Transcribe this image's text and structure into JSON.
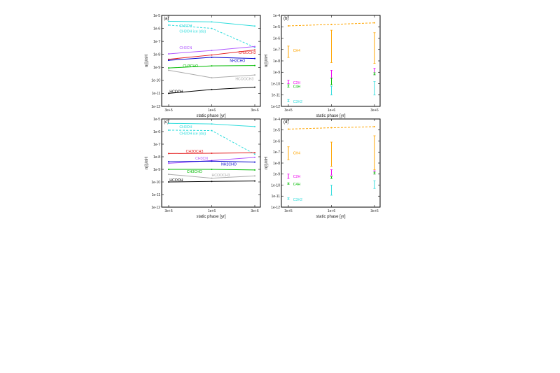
{
  "figure": {
    "yaxis_label": "n(i)/n",
    "yaxis_sub": "H",
    "xaxis_label": "static phase [yr]"
  },
  "chart_data": [
    {
      "panel": "(a)",
      "type": "line",
      "log_y": true,
      "ylim_exp": [
        -12,
        -5
      ],
      "ytick_labels": [
        "1e-5",
        "1e-6",
        "1e-7",
        "1e-8",
        "1e-9",
        "1e-10",
        "1e-11",
        "1e-12"
      ],
      "x": [
        "3e+5",
        "1e+6",
        "3e+6"
      ],
      "xlabel": "static phase [yr]",
      "ylabel": "n(i)/nH",
      "series": [
        {
          "name": "CH3OH",
          "color": "#33dddd",
          "dashed": false,
          "values": [
            3.5e-06,
            3.2e-06,
            1.5e-06
          ],
          "label_at": [
            0.25,
            1.6e-06
          ]
        },
        {
          "name": "CH3OH ice (dis)",
          "color": "#33dddd",
          "dashed": true,
          "values": [
            1.8e-06,
            1e-06,
            3.5e-08
          ],
          "label_at": [
            0.25,
            6e-07
          ]
        },
        {
          "name": "CH3CN",
          "color": "#b15bff",
          "dashed": false,
          "values": [
            1.1e-08,
            2e-08,
            4e-08
          ],
          "label_at": [
            0.25,
            3.2e-08
          ]
        },
        {
          "name": "CH3OCH3",
          "color": "#e41a1c",
          "dashed": false,
          "values": [
            4.2e-09,
            9e-09,
            2.2e-08
          ],
          "label_at": [
            1.62,
            1.4e-08
          ]
        },
        {
          "name": "NH2CHO",
          "color": "#0000cc",
          "dashed": false,
          "values": [
            3.5e-09,
            6e-09,
            4.8e-09
          ],
          "label_at": [
            1.42,
            3.2e-09
          ]
        },
        {
          "name": "CH3CHO",
          "color": "#00bb00",
          "dashed": false,
          "values": [
            9e-10,
            1.3e-09,
            1.4e-09
          ],
          "label_at": [
            0.33,
            1.3e-09
          ]
        },
        {
          "name": "HCOOCH3",
          "color": "#aaaaaa",
          "dashed": false,
          "values": [
            6e-10,
            1.6e-10,
            2.6e-10
          ],
          "label_at": [
            1.55,
            1.3e-10
          ]
        },
        {
          "name": "HCOOH",
          "color": "#000000",
          "dashed": false,
          "values": [
            1e-11,
            2e-11,
            3e-11
          ],
          "label_at": [
            0.02,
            1.4e-11
          ]
        }
      ]
    },
    {
      "panel": "(b)",
      "type": "range",
      "log_y": true,
      "ylim_exp": [
        -12,
        -4
      ],
      "ytick_labels": [
        "1e-4",
        "1e-5",
        "1e-6",
        "1e-7",
        "1e-8",
        "1e-9",
        "1e-10",
        "1e-11",
        "1e-12"
      ],
      "x": [
        "3e+5",
        "1e+6",
        "3e+6"
      ],
      "xlabel": "static phase [yr]",
      "ylabel": "n(i)/nH",
      "series": [
        {
          "name": "",
          "color": "#ffa500",
          "dashed": true,
          "kind": "line",
          "values": [
            1.2e-05,
            1.6e-05,
            2.2e-05
          ]
        },
        {
          "name": "CH4",
          "color": "#ffa500",
          "kind": "range",
          "ranges": [
            [
              2e-08,
              2e-07
            ],
            [
              7e-09,
              5e-06
            ],
            [
              6e-09,
              3e-06
            ]
          ],
          "label_at": [
            0.06,
            8e-08
          ]
        },
        {
          "name": "C2H",
          "color": "#ee00ee",
          "kind": "range",
          "ranges": [
            [
              1e-10,
              2e-10
            ],
            [
              3e-10,
              1.5e-09
            ],
            [
              6e-10,
              2.2e-09
            ]
          ],
          "label_at": [
            0.06,
            1.2e-10
          ]
        },
        {
          "name": "C4H",
          "color": "#00bb00",
          "kind": "range",
          "ranges": [
            [
              5e-11,
              8e-11
            ],
            [
              8e-11,
              3e-10
            ],
            [
              6e-10,
              9e-10
            ]
          ],
          "label_at": [
            0.06,
            5.5e-11
          ]
        },
        {
          "name": "C3H2",
          "color": "#33dddd",
          "kind": "range",
          "ranges": [
            [
              2.5e-12,
              4e-12
            ],
            [
              1e-11,
              6e-11
            ],
            [
              1e-11,
              1.5e-10
            ]
          ],
          "label_at": [
            0.06,
            2.7e-12
          ]
        }
      ]
    },
    {
      "panel": "(c)",
      "type": "line",
      "log_y": true,
      "ylim_exp": [
        -12,
        -5
      ],
      "ytick_labels": [
        "1e-5",
        "1e-6",
        "1e-7",
        "1e-8",
        "1e-9",
        "1e-10",
        "1e-11",
        "1e-12"
      ],
      "x": [
        "3e+5",
        "1e+6",
        "3e+6"
      ],
      "xlabel": "static phase [yr]",
      "ylabel": "n(i)/nH",
      "series": [
        {
          "name": "CH3OH",
          "color": "#33dddd",
          "dashed": false,
          "values": [
            4.5e-06,
            4e-06,
            2.5e-06
          ],
          "label_at": [
            0.25,
            2.4e-06
          ]
        },
        {
          "name": "CH3OH ice (dis)",
          "color": "#33dddd",
          "dashed": true,
          "values": [
            1.3e-06,
            1.2e-06,
            1.6e-08
          ],
          "label_at": [
            0.25,
            7e-07
          ]
        },
        {
          "name": "CH3OCH3",
          "color": "#e41a1c",
          "dashed": false,
          "values": [
            1.8e-08,
            1.9e-08,
            2.1e-08
          ],
          "label_at": [
            0.4,
            2.8e-08
          ]
        },
        {
          "name": "CH3CN",
          "color": "#b15bff",
          "dashed": false,
          "values": [
            3e-09,
            5e-09,
            9e-09
          ],
          "label_at": [
            0.62,
            7.5e-09
          ]
        },
        {
          "name": "NH2CHO",
          "color": "#0000cc",
          "dashed": false,
          "values": [
            4e-09,
            4.5e-09,
            3.8e-09
          ],
          "label_at": [
            1.22,
            2.6e-09
          ]
        },
        {
          "name": "CH3CHO",
          "color": "#00bb00",
          "dashed": false,
          "values": [
            1e-09,
            1e-09,
            9e-10
          ],
          "label_at": [
            0.42,
            6.5e-10
          ]
        },
        {
          "name": "HCOOCH3",
          "color": "#aaaaaa",
          "dashed": false,
          "values": [
            4e-10,
            2e-10,
            3e-10
          ],
          "label_at": [
            1.0,
            3.5e-10
          ]
        },
        {
          "name": "HCOOH",
          "color": "#000000",
          "dashed": false,
          "values": [
            1e-10,
            1.1e-10,
            1.2e-10
          ],
          "label_at": [
            0.02,
            1.4e-10
          ]
        }
      ]
    },
    {
      "panel": "(d)",
      "type": "range",
      "log_y": true,
      "ylim_exp": [
        -12,
        -4
      ],
      "ytick_labels": [
        "1e-4",
        "1e-5",
        "1e-6",
        "1e-7",
        "1e-8",
        "1e-9",
        "1e-10",
        "1e-11",
        "1e-12"
      ],
      "x": [
        "3e+5",
        "1e+6",
        "3e+6"
      ],
      "xlabel": "static phase [yr]",
      "ylabel": "n(i)/nH",
      "series": [
        {
          "name": "",
          "color": "#ffa500",
          "dashed": true,
          "kind": "line",
          "values": [
            1.2e-05,
            1.6e-05,
            2e-05
          ]
        },
        {
          "name": "CH4",
          "color": "#ffa500",
          "kind": "range",
          "ranges": [
            [
              2e-08,
              3e-07
            ],
            [
              5e-09,
              8e-07
            ],
            [
              2.5e-09,
              3e-06
            ]
          ],
          "label_at": [
            0.06,
            8e-08
          ]
        },
        {
          "name": "C2H",
          "color": "#ee00ee",
          "kind": "range",
          "ranges": [
            [
              4e-10,
              1e-09
            ],
            [
              8e-10,
              2.5e-09
            ],
            [
              1e-09,
              2e-09
            ]
          ],
          "label_at": [
            0.06,
            6e-10
          ]
        },
        {
          "name": "C4H",
          "color": "#00bb00",
          "kind": "range",
          "ranges": [
            [
              1.2e-10,
              1.6e-10
            ],
            [
              4e-10,
              6e-10
            ],
            [
              1e-09,
              1.5e-09
            ]
          ],
          "label_at": [
            0.06,
            1.2e-10
          ]
        },
        {
          "name": "C3H2",
          "color": "#33dddd",
          "kind": "range",
          "ranges": [
            [
              5e-12,
              7e-12
            ],
            [
              1.2e-11,
              1e-10
            ],
            [
              5e-11,
              2.5e-10
            ]
          ],
          "label_at": [
            0.06,
            5e-12
          ]
        }
      ]
    }
  ]
}
